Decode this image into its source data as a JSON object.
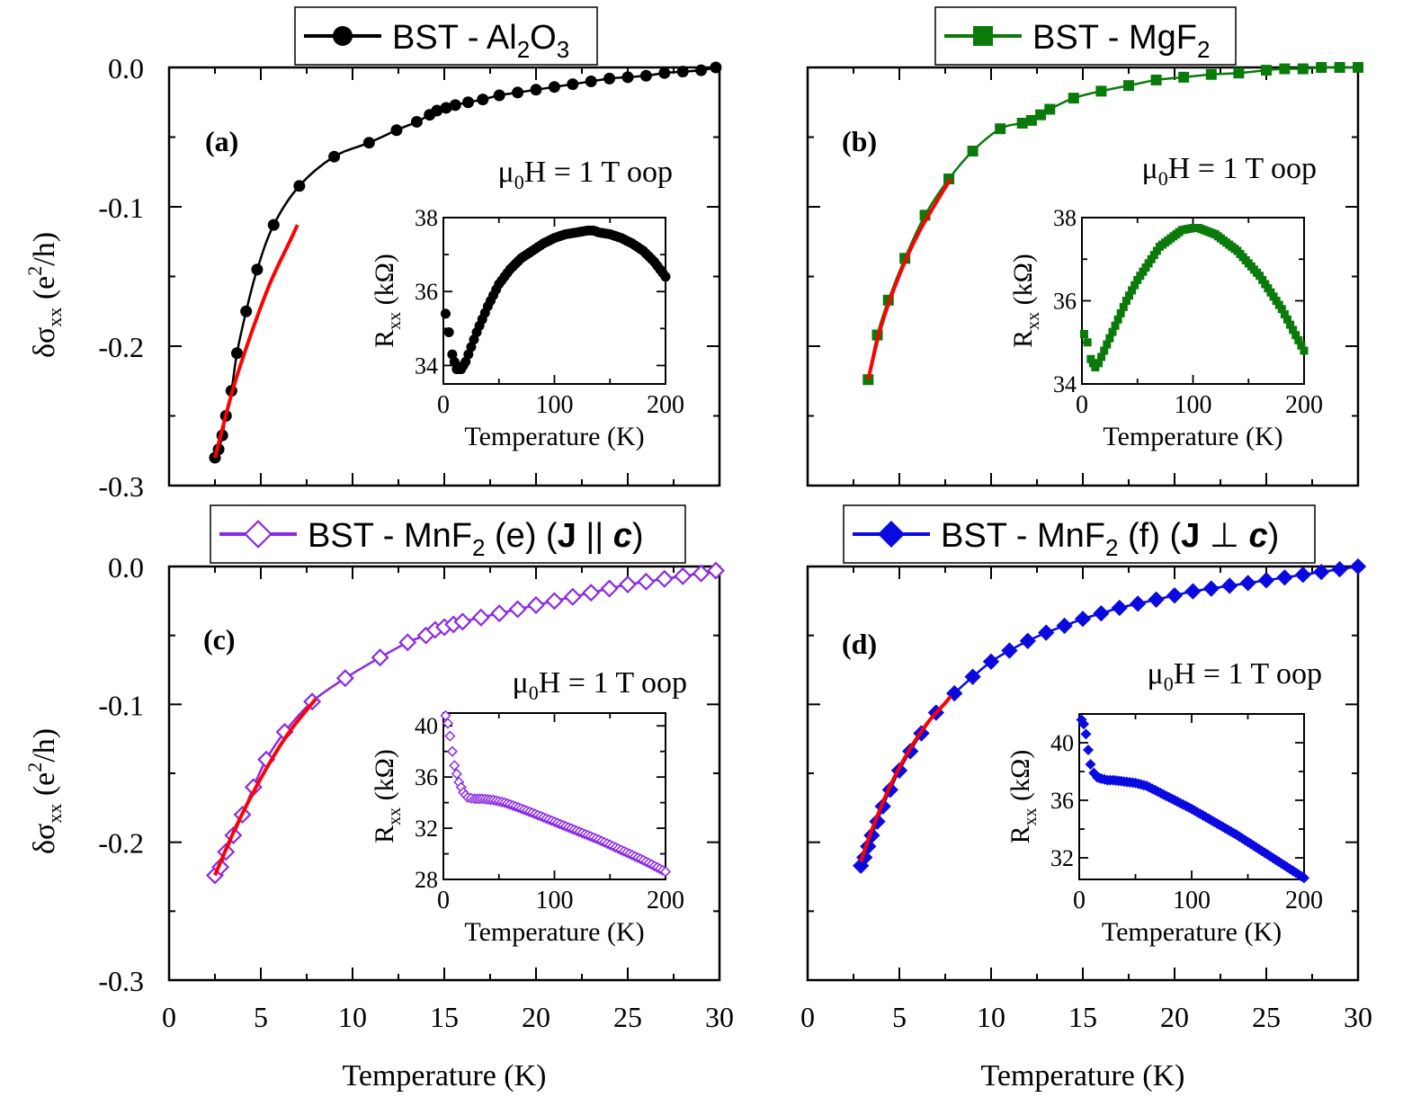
{
  "figure": {
    "shared_xlabel": "Temperature (K)",
    "shared_ylabel_main": "δσ",
    "shared_ylabel_sub": "xx",
    "shared_ylabel_rest_open": " (e",
    "shared_ylabel_sup": "2",
    "shared_ylabel_rest_close": "/h)"
  },
  "chart_data": [
    {
      "type": "line",
      "panel": "(a)",
      "legend": {
        "main": "BST - Al",
        "sub1": "2",
        "mid": "O",
        "sub2": "3"
      },
      "color": "#000000",
      "marker": "circle",
      "annotation": {
        "pre": "μ",
        "sub": "0",
        "post": "H = 1 T oop"
      },
      "xlim": [
        0,
        30
      ],
      "ylim": [
        -0.3,
        0.0
      ],
      "xticks": [
        0,
        5,
        10,
        15,
        20,
        25,
        30
      ],
      "xtick_labels": [
        "0",
        "5",
        "10",
        "15",
        "20",
        "25",
        "30"
      ],
      "yticks": [
        0.0,
        -0.1,
        -0.2,
        -0.3
      ],
      "ytick_labels": [
        "0.0",
        "-0.1",
        "-0.2",
        "-0.3"
      ],
      "xlabel": "Temperature (K)",
      "series": [
        {
          "name": "BST - Al2O3",
          "x": [
            2.5,
            2.7,
            2.9,
            3.1,
            3.4,
            3.7,
            4.2,
            4.8,
            5.7,
            7.1,
            9.0,
            10.9,
            12.4,
            13.5,
            14.2,
            14.6,
            15.1,
            15.6,
            16.3,
            17.1,
            18.0,
            19.0,
            20.0,
            21.0,
            22.0,
            23.0,
            24.0,
            25.0,
            26.0,
            27.0,
            28.0,
            29.0,
            29.8
          ],
          "y": [
            -0.28,
            -0.274,
            -0.264,
            -0.25,
            -0.232,
            -0.205,
            -0.175,
            -0.145,
            -0.113,
            -0.085,
            -0.064,
            -0.054,
            -0.045,
            -0.039,
            -0.034,
            -0.031,
            -0.029,
            -0.027,
            -0.025,
            -0.023,
            -0.02,
            -0.018,
            -0.016,
            -0.014,
            -0.012,
            -0.01,
            -0.008,
            -0.007,
            -0.006,
            -0.004,
            -0.003,
            -0.002,
            0.0
          ]
        }
      ],
      "fit": {
        "x": [
          2.5,
          3.5,
          4.5,
          5.5,
          6.5,
          7.0
        ],
        "y": [
          -0.28,
          -0.23,
          -0.19,
          -0.155,
          -0.127,
          -0.113
        ]
      },
      "inset": {
        "xlim": [
          0,
          200
        ],
        "ylim": [
          33.5,
          38
        ],
        "xticks": [
          0,
          100,
          200
        ],
        "xtick_labels": [
          "0",
          "100",
          "200"
        ],
        "yticks": [
          34,
          36,
          38
        ],
        "ytick_labels": [
          "34",
          "36",
          "38"
        ],
        "xlabel": "Temperature (K)",
        "ylabel": {
          "main": "R",
          "sub": "xx",
          "rest": " (kΩ)"
        },
        "x": [
          2,
          5,
          8,
          12,
          16,
          20,
          25,
          30,
          40,
          50,
          60,
          70,
          80,
          90,
          100,
          110,
          120,
          130,
          135,
          140,
          150,
          160,
          170,
          180,
          190,
          200
        ],
        "y": [
          35.4,
          34.9,
          34.3,
          33.9,
          33.9,
          34.1,
          34.5,
          34.9,
          35.6,
          36.2,
          36.6,
          36.9,
          37.1,
          37.3,
          37.45,
          37.55,
          37.6,
          37.65,
          37.65,
          37.6,
          37.55,
          37.45,
          37.3,
          37.1,
          36.8,
          36.4
        ]
      }
    },
    {
      "type": "line",
      "panel": "(b)",
      "legend": {
        "main": "BST - MgF",
        "sub1": "2",
        "mid": "",
        "sub2": ""
      },
      "color": "#0a7a0a",
      "marker": "square",
      "annotation": {
        "pre": "μ",
        "sub": "0",
        "post": "H = 1 T oop"
      },
      "xlim": [
        0,
        30
      ],
      "ylim": [
        -0.3,
        0.0
      ],
      "xticks": [
        0,
        5,
        10,
        15,
        20,
        25,
        30
      ],
      "xtick_labels": [
        "0",
        "5",
        "10",
        "15",
        "20",
        "25",
        "30"
      ],
      "yticks": [
        0.0,
        -0.1,
        -0.2,
        -0.3
      ],
      "ytick_labels": [
        "",
        "",
        "",
        ""
      ],
      "xlabel": "Temperature (K)",
      "series": [
        {
          "name": "BST - MgF2",
          "x": [
            3.3,
            3.8,
            4.4,
            5.3,
            6.4,
            7.7,
            9.0,
            10.5,
            11.7,
            12.2,
            12.7,
            13.2,
            14.5,
            16.0,
            17.5,
            19.0,
            20.5,
            22.0,
            23.5,
            25.0,
            26.0,
            27.0,
            28.0,
            29.0,
            30.0
          ],
          "y": [
            -0.224,
            -0.192,
            -0.167,
            -0.137,
            -0.106,
            -0.08,
            -0.06,
            -0.044,
            -0.04,
            -0.038,
            -0.034,
            -0.03,
            -0.022,
            -0.017,
            -0.013,
            -0.009,
            -0.007,
            -0.005,
            -0.004,
            -0.002,
            -0.001,
            -0.001,
            0.0,
            0.0,
            0.0
          ]
        }
      ],
      "fit": {
        "x": [
          3.3,
          4.0,
          5.0,
          6.0,
          7.0,
          7.8
        ],
        "y": [
          -0.224,
          -0.186,
          -0.149,
          -0.12,
          -0.097,
          -0.08
        ]
      },
      "inset": {
        "xlim": [
          0,
          200
        ],
        "ylim": [
          34,
          38
        ],
        "xticks": [
          0,
          100,
          200
        ],
        "xtick_labels": [
          "0",
          "100",
          "200"
        ],
        "yticks": [
          34,
          36,
          38
        ],
        "ytick_labels": [
          "34",
          "36",
          "38"
        ],
        "xlabel": "Temperature (K)",
        "ylabel": {
          "main": "R",
          "sub": "xx",
          "rest": " (kΩ)"
        },
        "x": [
          2,
          5,
          8,
          12,
          15,
          20,
          30,
          40,
          50,
          60,
          70,
          80,
          90,
          100,
          105,
          110,
          120,
          130,
          140,
          150,
          160,
          170,
          180,
          190,
          200
        ],
        "y": [
          35.2,
          35.0,
          34.6,
          34.4,
          34.5,
          34.8,
          35.4,
          36.0,
          36.5,
          36.9,
          37.3,
          37.5,
          37.7,
          37.75,
          37.75,
          37.7,
          37.6,
          37.4,
          37.2,
          36.9,
          36.6,
          36.2,
          35.8,
          35.3,
          34.8
        ]
      }
    },
    {
      "type": "line",
      "panel": "(c)",
      "legend": {
        "main": "BST - MnF",
        "sub1": "2",
        "mid": " (e) (",
        "bold": "J",
        "rel": " || ",
        "ital": "c",
        "end": ")"
      },
      "color": "#8a2be2",
      "marker": "diamond-open",
      "annotation": {
        "pre": "μ",
        "sub": "0",
        "post": "H = 1 T oop"
      },
      "xlim": [
        0,
        30
      ],
      "ylim": [
        -0.3,
        0.0
      ],
      "xticks": [
        0,
        5,
        10,
        15,
        20,
        25,
        30
      ],
      "xtick_labels": [
        "0",
        "5",
        "10",
        "15",
        "20",
        "25",
        "30"
      ],
      "yticks": [
        0.0,
        -0.1,
        -0.2,
        -0.3
      ],
      "ytick_labels": [
        "0.0",
        "-0.1",
        "-0.2",
        "-0.3"
      ],
      "xlabel": "Temperature (K)",
      "series": [
        {
          "name": "BST - MnF2 (e) (J || c)",
          "x": [
            2.5,
            2.8,
            3.1,
            3.5,
            4.0,
            4.6,
            5.3,
            6.3,
            7.8,
            9.6,
            11.5,
            13.0,
            14.0,
            14.5,
            15.0,
            15.5,
            16.0,
            17.0,
            18.0,
            19.0,
            20.0,
            21.0,
            22.0,
            23.0,
            24.0,
            25.0,
            26.0,
            27.0,
            28.0,
            29.0,
            29.8
          ],
          "y": [
            -0.224,
            -0.218,
            -0.207,
            -0.195,
            -0.18,
            -0.16,
            -0.14,
            -0.12,
            -0.098,
            -0.081,
            -0.066,
            -0.055,
            -0.05,
            -0.046,
            -0.044,
            -0.042,
            -0.04,
            -0.037,
            -0.034,
            -0.031,
            -0.028,
            -0.025,
            -0.022,
            -0.019,
            -0.016,
            -0.013,
            -0.011,
            -0.009,
            -0.007,
            -0.005,
            -0.003
          ]
        }
      ],
      "fit": {
        "x": [
          2.5,
          3.5,
          4.5,
          5.5,
          6.5,
          7.5,
          8.0
        ],
        "y": [
          -0.224,
          -0.193,
          -0.166,
          -0.142,
          -0.121,
          -0.104,
          -0.096
        ]
      },
      "inset": {
        "xlim": [
          0,
          200
        ],
        "ylim": [
          28,
          41
        ],
        "xticks": [
          0,
          100,
          200
        ],
        "xtick_labels": [
          "0",
          "100",
          "200"
        ],
        "yticks": [
          28,
          32,
          36,
          40
        ],
        "ytick_labels": [
          "28",
          "32",
          "36",
          "40"
        ],
        "xlabel": "Temperature (K)",
        "ylabel": {
          "main": "R",
          "sub": "xx",
          "rest": " (kΩ)"
        },
        "x": [
          2,
          4,
          6,
          8,
          10,
          14,
          18,
          22,
          28,
          35,
          45,
          55,
          65,
          80,
          100,
          120,
          140,
          160,
          180,
          200
        ],
        "y": [
          40.8,
          40.2,
          39.2,
          38.0,
          36.9,
          35.6,
          34.8,
          34.4,
          34.3,
          34.3,
          34.2,
          34.0,
          33.7,
          33.2,
          32.5,
          31.8,
          31.1,
          30.3,
          29.5,
          28.6
        ]
      }
    },
    {
      "type": "line",
      "panel": "(d)",
      "legend": {
        "main": "BST - MnF",
        "sub1": "2",
        "mid": " (f) (",
        "bold": "J",
        "rel": " ⊥ ",
        "ital": "c",
        "end": ")"
      },
      "color": "#0a0ae0",
      "marker": "diamond",
      "annotation": {
        "pre": "μ",
        "sub": "0",
        "post": "H = 1 T oop"
      },
      "xlim": [
        0,
        30
      ],
      "ylim": [
        -0.3,
        0.0
      ],
      "xticks": [
        0,
        5,
        10,
        15,
        20,
        25,
        30
      ],
      "xtick_labels": [
        "0",
        "5",
        "10",
        "15",
        "20",
        "25",
        "30"
      ],
      "yticks": [
        0.0,
        -0.1,
        -0.2,
        -0.3
      ],
      "ytick_labels": [
        "",
        "",
        "",
        ""
      ],
      "xlabel": "Temperature (K)",
      "series": [
        {
          "name": "BST - MnF2 (f) (J ⊥ c)",
          "x": [
            2.9,
            3.1,
            3.3,
            3.5,
            3.8,
            4.1,
            4.5,
            5.0,
            5.6,
            6.2,
            7.0,
            8.0,
            9.0,
            10.0,
            11.0,
            12.0,
            13.0,
            14.0,
            15.0,
            16.0,
            17.0,
            18.0,
            19.0,
            20.0,
            21.0,
            22.0,
            23.0,
            24.0,
            25.0,
            26.0,
            27.0,
            28.0,
            29.0,
            30.0
          ],
          "y": [
            -0.217,
            -0.211,
            -0.203,
            -0.195,
            -0.185,
            -0.174,
            -0.162,
            -0.148,
            -0.134,
            -0.121,
            -0.106,
            -0.092,
            -0.08,
            -0.069,
            -0.061,
            -0.054,
            -0.048,
            -0.043,
            -0.038,
            -0.034,
            -0.03,
            -0.027,
            -0.024,
            -0.021,
            -0.018,
            -0.016,
            -0.014,
            -0.012,
            -0.01,
            -0.008,
            -0.006,
            -0.004,
            -0.002,
            0.0
          ]
        }
      ],
      "fit": {
        "x": [
          2.9,
          3.5,
          4.5,
          5.5,
          6.5,
          7.5,
          7.8
        ],
        "y": [
          -0.214,
          -0.191,
          -0.159,
          -0.134,
          -0.114,
          -0.099,
          -0.094
        ]
      },
      "inset": {
        "xlim": [
          0,
          200
        ],
        "ylim": [
          30.5,
          42
        ],
        "xticks": [
          0,
          100,
          200
        ],
        "xtick_labels": [
          "0",
          "100",
          "200"
        ],
        "yticks": [
          32,
          36,
          40
        ],
        "ytick_labels": [
          "32",
          "36",
          "40"
        ],
        "xlabel": "Temperature (K)",
        "ylabel": {
          "main": "R",
          "sub": "xx",
          "rest": " (kΩ)"
        },
        "x": [
          2,
          4,
          6,
          8,
          10,
          13,
          16,
          20,
          25,
          30,
          40,
          50,
          60,
          70,
          80,
          100,
          120,
          140,
          160,
          180,
          200
        ],
        "y": [
          41.6,
          41.3,
          40.6,
          39.5,
          38.5,
          37.9,
          37.6,
          37.5,
          37.4,
          37.4,
          37.3,
          37.2,
          37.0,
          36.6,
          36.2,
          35.4,
          34.5,
          33.6,
          32.6,
          31.6,
          30.6
        ]
      }
    }
  ]
}
